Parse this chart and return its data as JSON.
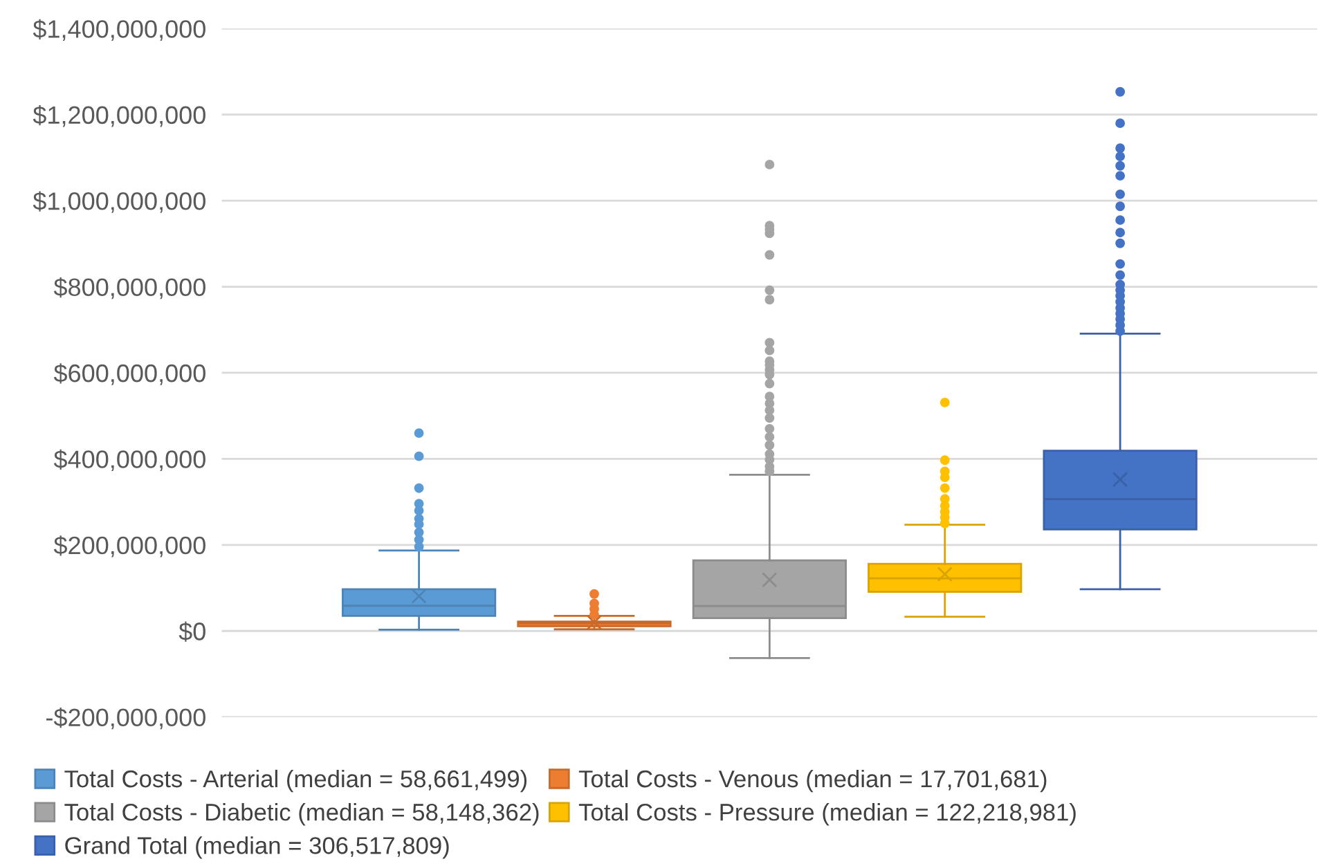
{
  "chart_data": {
    "type": "box",
    "categories": [
      null
    ],
    "ylim": [
      -200000000,
      1400000000
    ],
    "yticks": [
      {
        "value": -200000000,
        "label": "-$200,000,000"
      },
      {
        "value": 0,
        "label": "$0"
      },
      {
        "value": 200000000,
        "label": "$200,000,000"
      },
      {
        "value": 400000000,
        "label": "$400,000,000"
      },
      {
        "value": 600000000,
        "label": "$600,000,000"
      },
      {
        "value": 800000000,
        "label": "$800,000,000"
      },
      {
        "value": 1000000000,
        "label": "$1,000,000,000"
      },
      {
        "value": 1200000000,
        "label": "$1,200,000,000"
      },
      {
        "value": 1400000000,
        "label": "$1,400,000,000"
      }
    ],
    "grid": "y",
    "legend": "bottom",
    "marker": "circle",
    "tick_labels": "y",
    "series": [
      {
        "name": "Total Costs - Arterial (median = 58,661,499)",
        "color": "#5b9bd5",
        "boxes": [
          {
            "low": 3000000,
            "q1": 35000000,
            "median": 58661499,
            "q3": 97000000,
            "high": 187000000,
            "mean": 81000000,
            "outliers": [
              460000000,
              406000000,
              332000000,
              296000000,
              280000000,
              261000000,
              248000000,
              229000000,
              212000000,
              196000000
            ]
          }
        ]
      },
      {
        "name": "Total Costs - Venous (median = 17,701,681)",
        "color": "#ed7d31",
        "boxes": [
          {
            "low": 4000000,
            "q1": 11000000,
            "median": 17701681,
            "q3": 22000000,
            "high": 35000000,
            "mean": 20000000,
            "outliers": [
              86000000,
              64000000,
              51000000,
              38000000
            ]
          }
        ]
      },
      {
        "name": "Total Costs - Diabetic (median = 58,148,362)",
        "color": "#a5a5a5",
        "boxes": [
          {
            "low": -63000000,
            "q1": 30000000,
            "median": 58148362,
            "q3": 164000000,
            "high": 363000000,
            "mean": 119000000,
            "outliers": [
              1084000000,
              942000000,
              933000000,
              924000000,
              874000000,
              792000000,
              770000000,
              670000000,
              652000000,
              627000000,
              618000000,
              607000000,
              596000000,
              575000000,
              545000000,
              529000000,
              513000000,
              495000000,
              470000000,
              451000000,
              432000000,
              411000000,
              398000000,
              382000000,
              371000000
            ]
          }
        ]
      },
      {
        "name": "Total Costs - Pressure (median = 122,218,981)",
        "color": "#ffc000",
        "boxes": [
          {
            "low": 33000000,
            "q1": 91000000,
            "median": 122218981,
            "q3": 156000000,
            "high": 247000000,
            "mean": 132000000,
            "outliers": [
              531000000,
              397000000,
              371000000,
              357000000,
              332000000,
              307000000,
              291000000,
              277000000,
              264000000,
              250000000
            ]
          }
        ]
      },
      {
        "name": "Grand Total (median = 306,517,809)",
        "color": "#4472c4",
        "boxes": [
          {
            "low": 97000000,
            "q1": 236000000,
            "median": 306517809,
            "q3": 419000000,
            "high": 691000000,
            "mean": 352000000,
            "outliers": [
              1253000000,
              1180000000,
              1122000000,
              1103000000,
              1081000000,
              1058000000,
              1015000000,
              987000000,
              955000000,
              926000000,
              901000000,
              853000000,
              827000000,
              805000000,
              792000000,
              779000000,
              765000000,
              751000000,
              738000000,
              725000000,
              711000000,
              697000000
            ]
          }
        ]
      }
    ]
  }
}
